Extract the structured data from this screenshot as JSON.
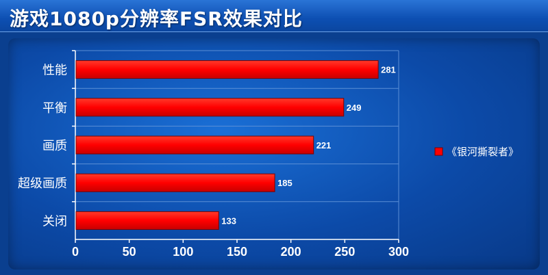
{
  "title": "游戏1080p分辨率FSR效果对比",
  "colors": {
    "bar": "#ff0000",
    "background": "#0b46a0",
    "text": "#ffffff"
  },
  "chart_data": {
    "type": "bar",
    "orientation": "horizontal",
    "title": "游戏1080p分辨率FSR效果对比",
    "categories": [
      "性能",
      "平衡",
      "画质",
      "超级画质",
      "关闭"
    ],
    "series": [
      {
        "name": "《银河撕裂者》",
        "values": [
          281,
          249,
          221,
          185,
          133
        ]
      }
    ],
    "xlim": [
      0,
      300
    ],
    "xticks": [
      0,
      50,
      100,
      150,
      200,
      250,
      300
    ],
    "grid": true,
    "legend": "right"
  }
}
